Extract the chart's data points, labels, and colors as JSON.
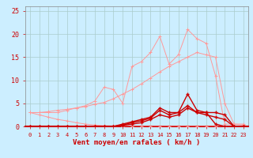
{
  "background_color": "#cceeff",
  "grid_color": "#aacccc",
  "xlabel": "Vent moyen/en rafales ( km/h )",
  "xlabel_color": "#cc0000",
  "ylabel_yticks": [
    0,
    5,
    10,
    15,
    20,
    25
  ],
  "xlim": [
    -0.5,
    23.5
  ],
  "ylim": [
    0,
    26
  ],
  "xticks": [
    0,
    1,
    2,
    3,
    4,
    5,
    6,
    7,
    8,
    9,
    10,
    11,
    12,
    13,
    14,
    15,
    16,
    17,
    18,
    19,
    20,
    21,
    22,
    23
  ],
  "light_color": "#ff9999",
  "dark_color": "#cc0000",
  "line_A_x": [
    0,
    1,
    2,
    3,
    4,
    5,
    6,
    7,
    8,
    9,
    10,
    11,
    12,
    13,
    14,
    15,
    16,
    17,
    18,
    19,
    20,
    21,
    22,
    23
  ],
  "line_A_y": [
    3.0,
    2.5,
    2.0,
    1.5,
    1.2,
    0.8,
    0.5,
    0.3,
    0.15,
    0.1,
    0.05,
    0.0,
    0.0,
    0.0,
    0.0,
    0.0,
    0.0,
    0.0,
    0.0,
    0.0,
    0.0,
    0.0,
    0.0,
    0.0
  ],
  "line_B_x": [
    0,
    1,
    2,
    3,
    4,
    5,
    6,
    7,
    8,
    9,
    10,
    11,
    12,
    13,
    14,
    15,
    16,
    17,
    18,
    19,
    20,
    21,
    22,
    23
  ],
  "line_B_y": [
    3.0,
    3.0,
    3.2,
    3.5,
    3.7,
    4.0,
    4.3,
    4.8,
    5.2,
    6.0,
    7.0,
    8.0,
    9.2,
    10.5,
    11.8,
    13.0,
    14.0,
    15.0,
    16.0,
    15.5,
    15.0,
    5.0,
    0.5,
    0.3
  ],
  "line_C_x": [
    0,
    1,
    2,
    3,
    4,
    5,
    6,
    7,
    8,
    9,
    10,
    11,
    12,
    13,
    14,
    15,
    16,
    17,
    18,
    19,
    20,
    21,
    22,
    23
  ],
  "line_C_y": [
    3.0,
    3.0,
    3.0,
    3.0,
    3.5,
    4.0,
    4.5,
    5.5,
    8.5,
    8.0,
    5.0,
    13.0,
    14.0,
    16.0,
    19.5,
    13.5,
    15.5,
    21.0,
    19.0,
    18.0,
    11.0,
    0.5,
    0.5,
    0.5
  ],
  "line_D_x": [
    0,
    1,
    2,
    3,
    4,
    5,
    6,
    7,
    8,
    9,
    10,
    11,
    12,
    13,
    14,
    15,
    16,
    17,
    18,
    19,
    20,
    21,
    22,
    23
  ],
  "line_D_y": [
    0.0,
    0.0,
    0.0,
    0.0,
    0.0,
    0.0,
    0.0,
    0.0,
    0.0,
    0.0,
    0.5,
    1.0,
    1.5,
    2.0,
    4.0,
    3.0,
    3.0,
    7.0,
    3.5,
    3.0,
    0.5,
    0.0,
    0.0,
    0.0
  ],
  "line_E_x": [
    0,
    1,
    2,
    3,
    4,
    5,
    6,
    7,
    8,
    9,
    10,
    11,
    12,
    13,
    14,
    15,
    16,
    17,
    18,
    19,
    20,
    21,
    22,
    23
  ],
  "line_E_y": [
    0.0,
    0.0,
    0.0,
    0.0,
    0.0,
    0.0,
    0.0,
    0.0,
    0.0,
    0.0,
    0.3,
    0.8,
    1.2,
    1.8,
    3.5,
    2.5,
    3.0,
    4.5,
    3.0,
    3.0,
    3.0,
    2.5,
    0.0,
    0.0
  ],
  "line_F_x": [
    0,
    1,
    2,
    3,
    4,
    5,
    6,
    7,
    8,
    9,
    10,
    11,
    12,
    13,
    14,
    15,
    16,
    17,
    18,
    19,
    20,
    21,
    22,
    23
  ],
  "line_F_y": [
    0.0,
    0.0,
    0.0,
    0.0,
    0.0,
    0.0,
    0.0,
    0.0,
    0.0,
    0.0,
    0.2,
    0.5,
    0.8,
    1.5,
    2.5,
    2.0,
    2.5,
    4.0,
    3.0,
    2.5,
    2.0,
    1.5,
    0.0,
    0.0
  ]
}
